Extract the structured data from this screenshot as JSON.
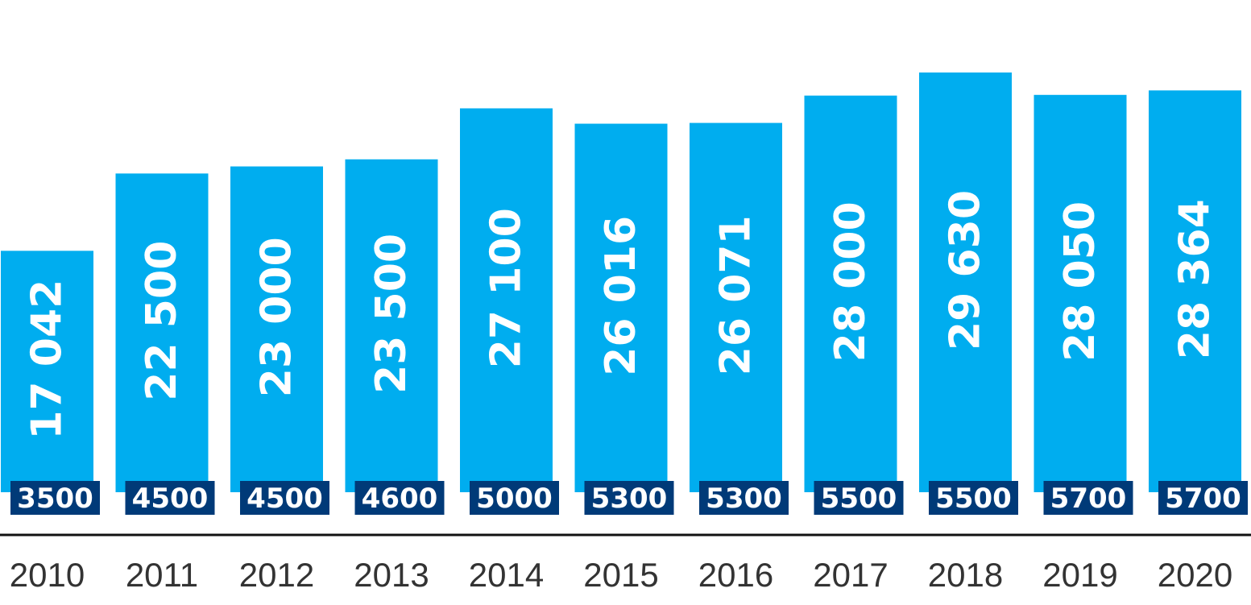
{
  "chart_data": {
    "type": "bar",
    "title": "",
    "xlabel": "",
    "ylabel": "",
    "ylim": [
      0,
      30500
    ],
    "grid": false,
    "legend": "none",
    "categories": [
      "2010",
      "2011",
      "2012",
      "2013",
      "2014",
      "2015",
      "2016",
      "2017",
      "2018",
      "2019",
      "2020"
    ],
    "values": [
      17042,
      22500,
      23000,
      23500,
      27100,
      26016,
      26071,
      28000,
      29630,
      28050,
      28364
    ],
    "value_labels": [
      "17 042",
      "22 500",
      "23 000",
      "23 500",
      "27 100",
      "26 016",
      "26 071",
      "28 000",
      "29 630",
      "28 050",
      "28 364"
    ],
    "secondary_values": [
      3500,
      4500,
      4500,
      4600,
      5000,
      5300,
      5300,
      5500,
      5500,
      5700,
      5700
    ],
    "secondary_labels": [
      "3500",
      "4500",
      "4500",
      "4600",
      "5000",
      "5300",
      "5300",
      "5500",
      "5500",
      "5700",
      "5700"
    ],
    "colors": {
      "bar": "#00adef",
      "badge": "#003a78",
      "axis": "#111111",
      "tick_text": "#333333",
      "value_text": "#ffffff"
    }
  }
}
